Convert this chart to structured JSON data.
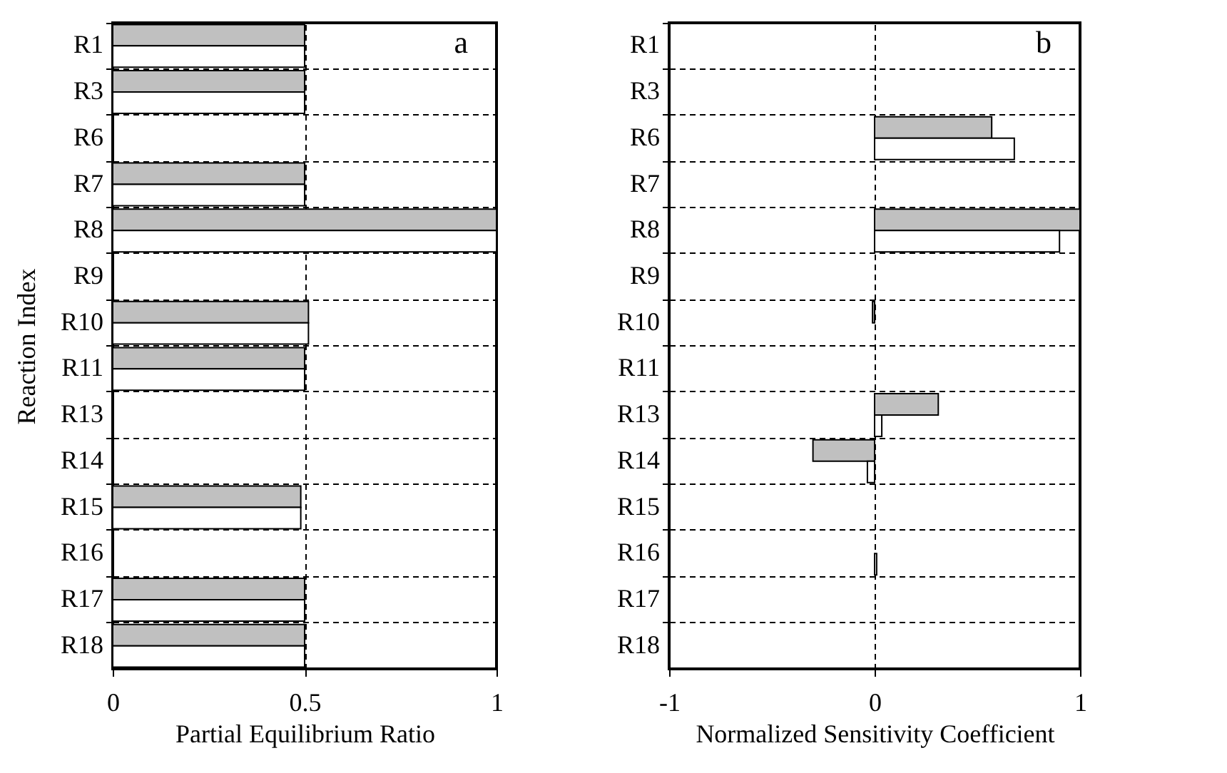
{
  "chart_data": [
    {
      "type": "bar",
      "orientation": "horizontal",
      "annotations": [
        "a"
      ],
      "xlabel": "Partial Equilibrium Ratio",
      "ylabel": "Reaction Index",
      "categories": [
        "R1",
        "R3",
        "R6",
        "R7",
        "R8",
        "R9",
        "R10",
        "R11",
        "R13",
        "R14",
        "R15",
        "R16",
        "R17",
        "R18"
      ],
      "series": [
        {
          "color": "#c0c0c0",
          "values": [
            0.5,
            0.5,
            null,
            0.5,
            1,
            null,
            0.51,
            0.5,
            null,
            null,
            0.49,
            null,
            0.5,
            0.5
          ]
        },
        {
          "color": "#ffffff",
          "values": [
            0.5,
            0.5,
            null,
            0.5,
            1,
            null,
            0.51,
            0.5,
            null,
            null,
            0.49,
            null,
            0.5,
            0.5
          ]
        }
      ],
      "xlim": [
        0,
        1
      ],
      "xticks": [
        0,
        0.5,
        1
      ],
      "grid": true,
      "line_style": "dashed",
      "legend": false
    },
    {
      "type": "bar",
      "orientation": "horizontal",
      "annotations": [
        "b"
      ],
      "xlabel": "Normalized Sensitivity Coefficient",
      "categories": [
        "R1",
        "R3",
        "R6",
        "R7",
        "R8",
        "R9",
        "R10",
        "R11",
        "R13",
        "R14",
        "R15",
        "R16",
        "R17",
        "R18"
      ],
      "series": [
        {
          "color": "#c0c0c0",
          "values": [
            null,
            null,
            0.57,
            null,
            1,
            null,
            -0.01,
            null,
            0.31,
            -0.3,
            null,
            null,
            null,
            null
          ]
        },
        {
          "color": "#ffffff",
          "values": [
            null,
            null,
            0.68,
            null,
            0.9,
            null,
            null,
            null,
            0.035,
            -0.035,
            null,
            0.01,
            null,
            null
          ]
        }
      ],
      "xlim": [
        -1,
        1
      ],
      "xticks": [
        -1,
        0,
        1
      ],
      "grid": true,
      "line_style": "dashed",
      "legend": false
    }
  ]
}
